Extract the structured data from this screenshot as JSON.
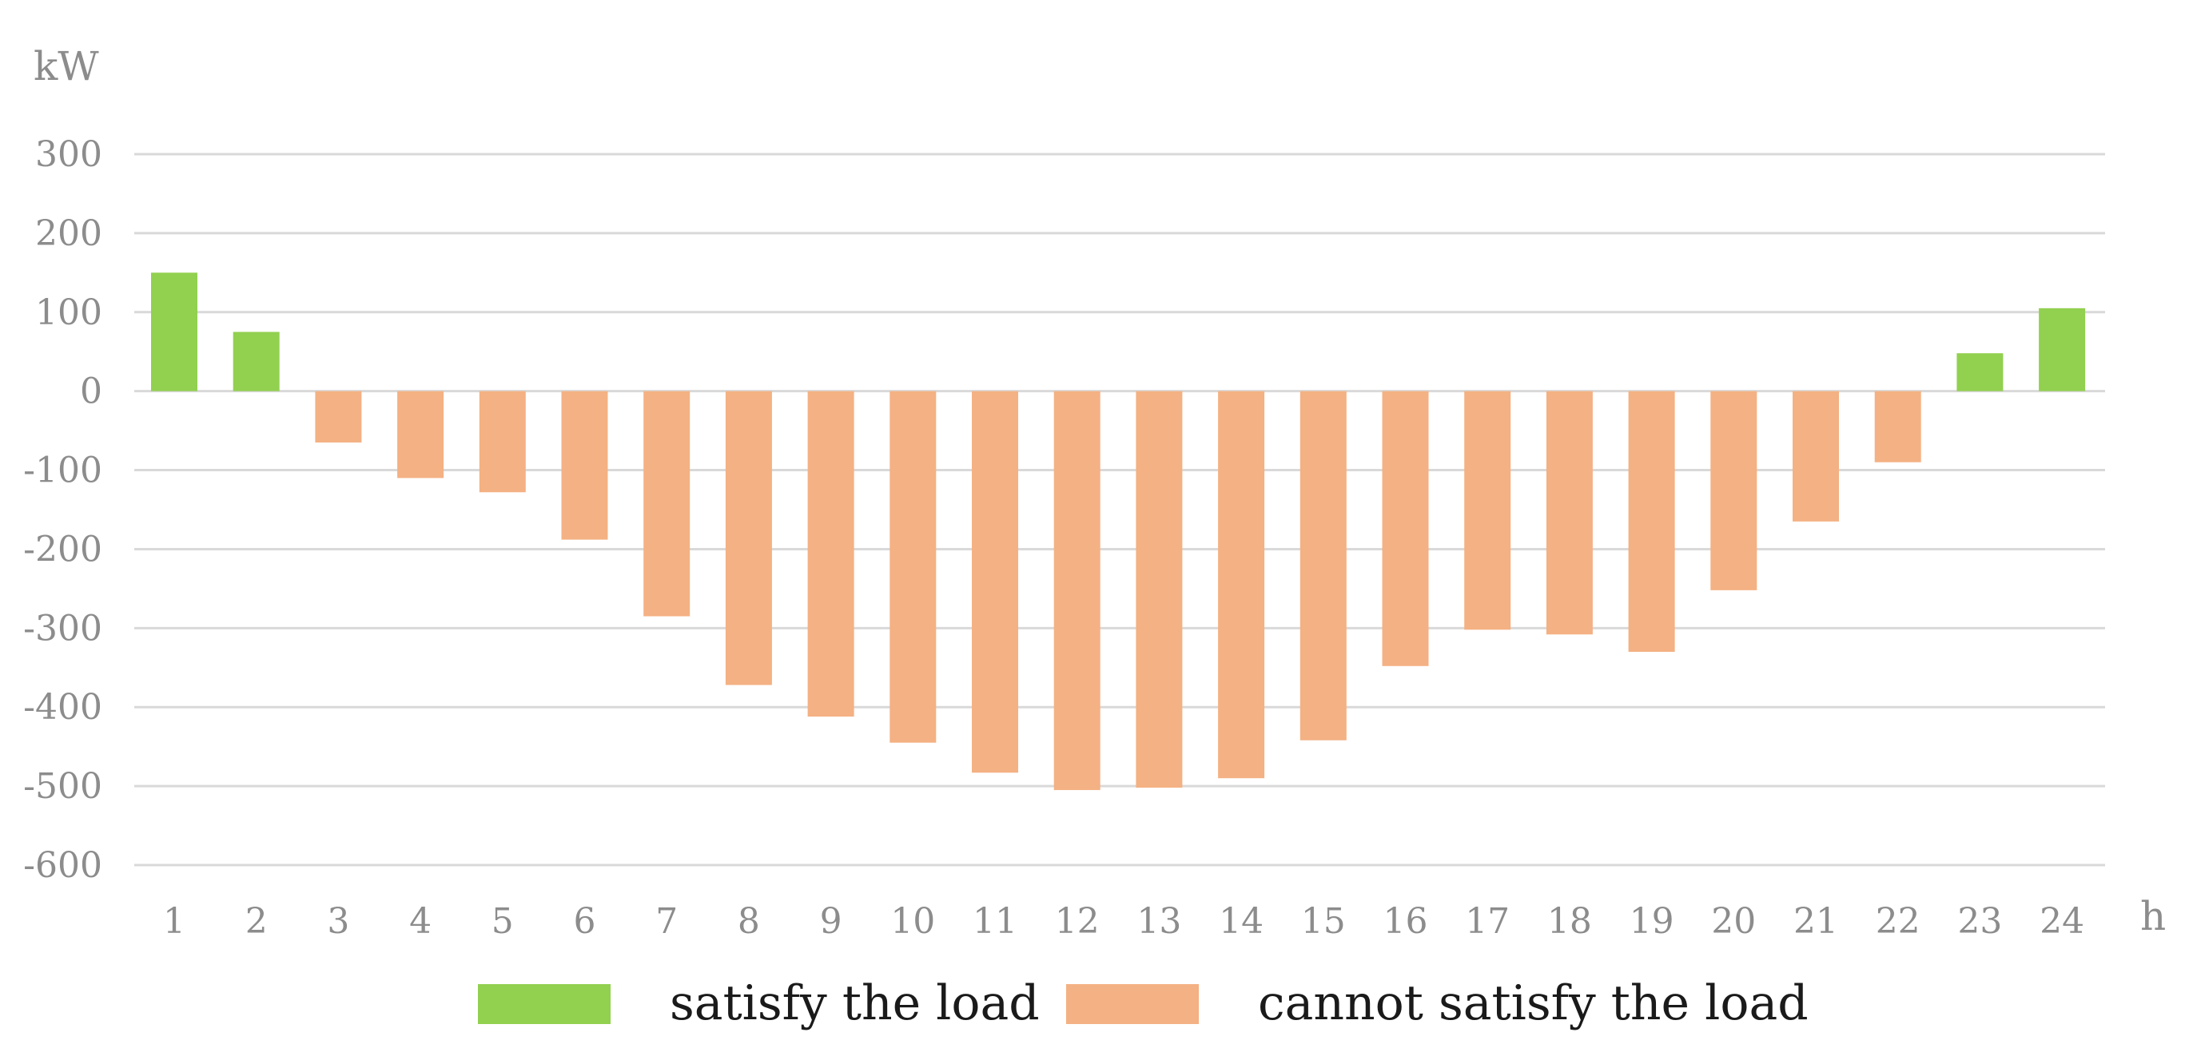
{
  "chart_data": {
    "type": "bar",
    "title": "",
    "ylabel": "kW",
    "xlabel": "h",
    "ylim": [
      -600,
      300
    ],
    "yticks": [
      300,
      200,
      100,
      0,
      -100,
      -200,
      -300,
      -400,
      -500,
      -600
    ],
    "ytick_labels": [
      "300",
      "200",
      "100",
      "0",
      "-100",
      "-200",
      "-300",
      "-400",
      "-500",
      "-600"
    ],
    "categories": [
      "1",
      "2",
      "3",
      "4",
      "5",
      "6",
      "7",
      "8",
      "9",
      "10",
      "11",
      "12",
      "13",
      "14",
      "15",
      "16",
      "17",
      "18",
      "19",
      "20",
      "21",
      "22",
      "23",
      "24"
    ],
    "values": [
      150,
      75,
      -65,
      -110,
      -128,
      -188,
      -285,
      -372,
      -412,
      -445,
      -483,
      -505,
      -502,
      -490,
      -442,
      -348,
      -302,
      -308,
      -330,
      -252,
      -165,
      -90,
      48,
      105
    ],
    "grid": true,
    "series": [
      {
        "name": "satisfy the load",
        "color": "#92d050",
        "rule": "value >= 0"
      },
      {
        "name": "cannot satisfy the load",
        "color": "#f4b183",
        "rule": "value < 0"
      }
    ],
    "legend_position": "bottom-center"
  }
}
